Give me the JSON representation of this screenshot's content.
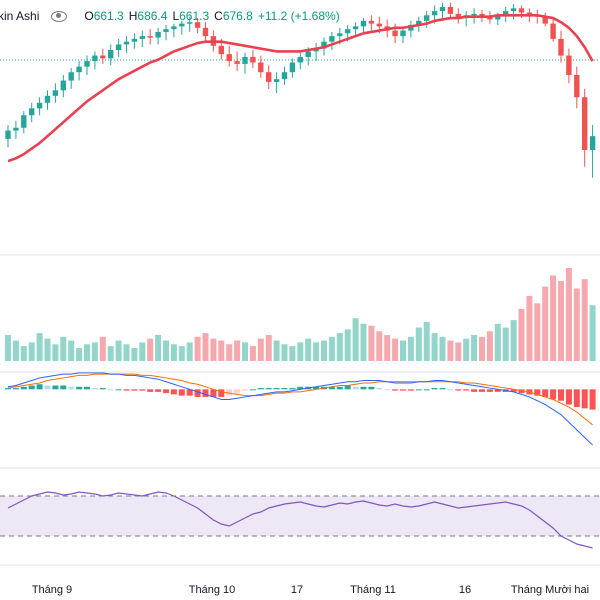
{
  "legend": {
    "title": "kin Ashi",
    "open_label": "O",
    "open": "661.3",
    "high_label": "H",
    "high": "686.4",
    "low_label": "L",
    "low": "661.3",
    "close_label": "C",
    "close": "676.8",
    "change": "+11.2 (+1.68%)"
  },
  "colors": {
    "up": "#26a69a",
    "down": "#ef5350",
    "ma": "#e8414f",
    "ma_short": "#3aa67a",
    "vol_up": "#93d5cb",
    "vol_down": "#f5a9ae",
    "macd_line": "#2962ff",
    "signal_line": "#ff6d00",
    "rsi_line": "#7e57c2",
    "rsi_band": "#ede7f6"
  },
  "chart_data": {
    "type": "candlestick",
    "x_ticks": [
      "Tháng 9",
      "Tháng 10",
      "17",
      "Tháng 11",
      "16",
      "Tháng Mười hai"
    ],
    "price_ylim": [
      540,
      720
    ],
    "candles": [
      [
        620,
        630,
        614,
        626
      ],
      [
        626,
        633,
        620,
        628
      ],
      [
        628,
        640,
        624,
        637
      ],
      [
        637,
        646,
        632,
        642
      ],
      [
        642,
        650,
        637,
        646
      ],
      [
        646,
        655,
        641,
        651
      ],
      [
        651,
        660,
        646,
        655
      ],
      [
        655,
        666,
        650,
        662
      ],
      [
        662,
        671,
        656,
        668
      ],
      [
        668,
        676,
        662,
        672
      ],
      [
        672,
        680,
        666,
        676
      ],
      [
        676,
        683,
        670,
        680
      ],
      [
        680,
        685,
        674,
        678
      ],
      [
        678,
        688,
        673,
        684
      ],
      [
        684,
        692,
        679,
        688
      ],
      [
        688,
        694,
        682,
        690
      ],
      [
        690,
        696,
        685,
        692
      ],
      [
        692,
        698,
        686,
        694
      ],
      [
        694,
        699,
        688,
        693
      ],
      [
        693,
        700,
        688,
        697
      ],
      [
        697,
        702,
        691,
        699
      ],
      [
        699,
        703,
        693,
        701
      ],
      [
        701,
        705,
        695,
        703
      ],
      [
        703,
        708,
        697,
        704
      ],
      [
        704,
        707,
        696,
        700
      ],
      [
        700,
        704,
        690,
        694
      ],
      [
        694,
        698,
        683,
        687
      ],
      [
        687,
        692,
        677,
        681
      ],
      [
        681,
        687,
        672,
        676
      ],
      [
        676,
        683,
        669,
        674
      ],
      [
        674,
        682,
        667,
        679
      ],
      [
        679,
        684,
        671,
        675
      ],
      [
        675,
        680,
        664,
        668
      ],
      [
        668,
        673,
        656,
        661
      ],
      [
        661,
        668,
        653,
        663
      ],
      [
        663,
        672,
        659,
        668
      ],
      [
        668,
        678,
        664,
        675
      ],
      [
        675,
        682,
        670,
        679
      ],
      [
        679,
        686,
        673,
        683
      ],
      [
        683,
        689,
        676,
        685
      ],
      [
        685,
        693,
        680,
        690
      ],
      [
        690,
        697,
        684,
        694
      ],
      [
        694,
        700,
        688,
        696
      ],
      [
        696,
        702,
        690,
        699
      ],
      [
        699,
        704,
        693,
        701
      ],
      [
        701,
        707,
        696,
        705
      ],
      [
        705,
        709,
        698,
        703
      ],
      [
        703,
        708,
        696,
        701
      ],
      [
        701,
        706,
        693,
        698
      ],
      [
        698,
        703,
        689,
        694
      ],
      [
        694,
        701,
        689,
        698
      ],
      [
        698,
        705,
        693,
        702
      ],
      [
        702,
        708,
        697,
        705
      ],
      [
        705,
        712,
        700,
        709
      ],
      [
        709,
        716,
        703,
        712
      ],
      [
        712,
        718,
        705,
        715
      ],
      [
        715,
        718,
        707,
        710
      ],
      [
        710,
        714,
        703,
        707
      ],
      [
        707,
        712,
        701,
        709
      ],
      [
        709,
        714,
        703,
        710
      ],
      [
        710,
        713,
        704,
        708
      ],
      [
        708,
        712,
        703,
        706
      ],
      [
        706,
        711,
        702,
        709
      ],
      [
        709,
        715,
        704,
        712
      ],
      [
        712,
        717,
        706,
        714
      ],
      [
        714,
        716,
        707,
        711
      ],
      [
        711,
        714,
        704,
        709
      ],
      [
        709,
        713,
        703,
        708
      ],
      [
        708,
        711,
        701,
        703
      ],
      [
        703,
        707,
        690,
        692
      ],
      [
        692,
        698,
        675,
        680
      ],
      [
        680,
        685,
        660,
        666
      ],
      [
        666,
        672,
        642,
        650
      ],
      [
        650,
        656,
        600,
        612
      ],
      [
        612,
        630,
        592,
        622
      ]
    ],
    "ma_long": [
      604,
      606,
      609,
      613,
      617,
      622,
      627,
      632,
      637,
      642,
      647,
      651,
      655,
      659,
      663,
      666,
      669,
      672,
      675,
      677,
      680,
      683,
      685,
      687,
      689,
      690,
      690,
      690,
      689,
      688,
      687,
      686,
      685,
      684,
      683,
      683,
      683,
      683,
      684,
      685,
      686,
      688,
      690,
      692,
      694,
      696,
      697,
      698,
      699,
      700,
      700,
      701,
      702,
      703,
      705,
      706,
      707,
      707,
      708,
      708,
      708,
      708,
      709,
      709,
      709,
      709,
      709,
      709,
      708,
      707,
      704,
      700,
      694,
      686,
      676
    ],
    "volume": [
      28,
      22,
      16,
      20,
      30,
      24,
      18,
      26,
      22,
      14,
      18,
      20,
      26,
      16,
      22,
      18,
      14,
      20,
      24,
      28,
      22,
      18,
      16,
      20,
      26,
      30,
      24,
      22,
      18,
      22,
      20,
      16,
      24,
      28,
      22,
      18,
      16,
      20,
      24,
      20,
      22,
      26,
      30,
      34,
      46,
      40,
      38,
      32,
      28,
      24,
      22,
      26,
      36,
      42,
      30,
      26,
      22,
      20,
      24,
      28,
      26,
      32,
      40,
      36,
      44,
      56,
      70,
      62,
      80,
      92,
      86,
      100,
      78,
      88,
      60
    ],
    "vol_ylim": [
      0,
      100
    ],
    "macd": [
      2,
      3,
      5,
      7,
      9,
      10,
      11,
      12,
      12,
      13,
      13,
      13,
      13,
      12,
      12,
      11,
      11,
      10,
      9,
      8,
      6,
      4,
      2,
      0,
      -2,
      -4,
      -6,
      -8,
      -8,
      -7,
      -6,
      -5,
      -4,
      -3,
      -2,
      -2,
      -1,
      0,
      1,
      2,
      3,
      4,
      5,
      6,
      6,
      7,
      7,
      7,
      6,
      5,
      5,
      5,
      6,
      6,
      7,
      7,
      6,
      5,
      4,
      3,
      2,
      1,
      0,
      -1,
      -2,
      -4,
      -6,
      -9,
      -12,
      -16,
      -20,
      -26,
      -32,
      -38,
      -44
    ],
    "signal": [
      1,
      2,
      3,
      4,
      5,
      7,
      8,
      9,
      10,
      11,
      11,
      12,
      12,
      12,
      12,
      12,
      12,
      11,
      11,
      10,
      9,
      8,
      7,
      5,
      4,
      2,
      0,
      -2,
      -3,
      -4,
      -5,
      -5,
      -5,
      -4,
      -3,
      -3,
      -2,
      -2,
      -1,
      0,
      1,
      2,
      3,
      3,
      4,
      5,
      5,
      6,
      6,
      6,
      6,
      6,
      6,
      6,
      6,
      6,
      6,
      6,
      5,
      5,
      4,
      3,
      2,
      1,
      0,
      -1,
      -2,
      -4,
      -6,
      -8,
      -11,
      -14,
      -18,
      -23,
      -28
    ],
    "macd_ylim": [
      -40,
      20
    ],
    "rsi": [
      58,
      62,
      66,
      70,
      72,
      74,
      73,
      71,
      72,
      74,
      73,
      72,
      70,
      71,
      73,
      72,
      71,
      70,
      72,
      74,
      73,
      70,
      66,
      62,
      58,
      52,
      46,
      42,
      40,
      44,
      48,
      52,
      54,
      58,
      60,
      62,
      63,
      64,
      62,
      60,
      59,
      61,
      63,
      62,
      64,
      65,
      63,
      61,
      60,
      62,
      60,
      59,
      60,
      62,
      64,
      62,
      60,
      58,
      59,
      60,
      61,
      62,
      63,
      64,
      62,
      60,
      56,
      50,
      44,
      38,
      30,
      26,
      22,
      20,
      18
    ],
    "rsi_ylim": [
      0,
      100
    ],
    "rsi_bands": [
      30,
      70
    ],
    "price_line": 676.8
  }
}
